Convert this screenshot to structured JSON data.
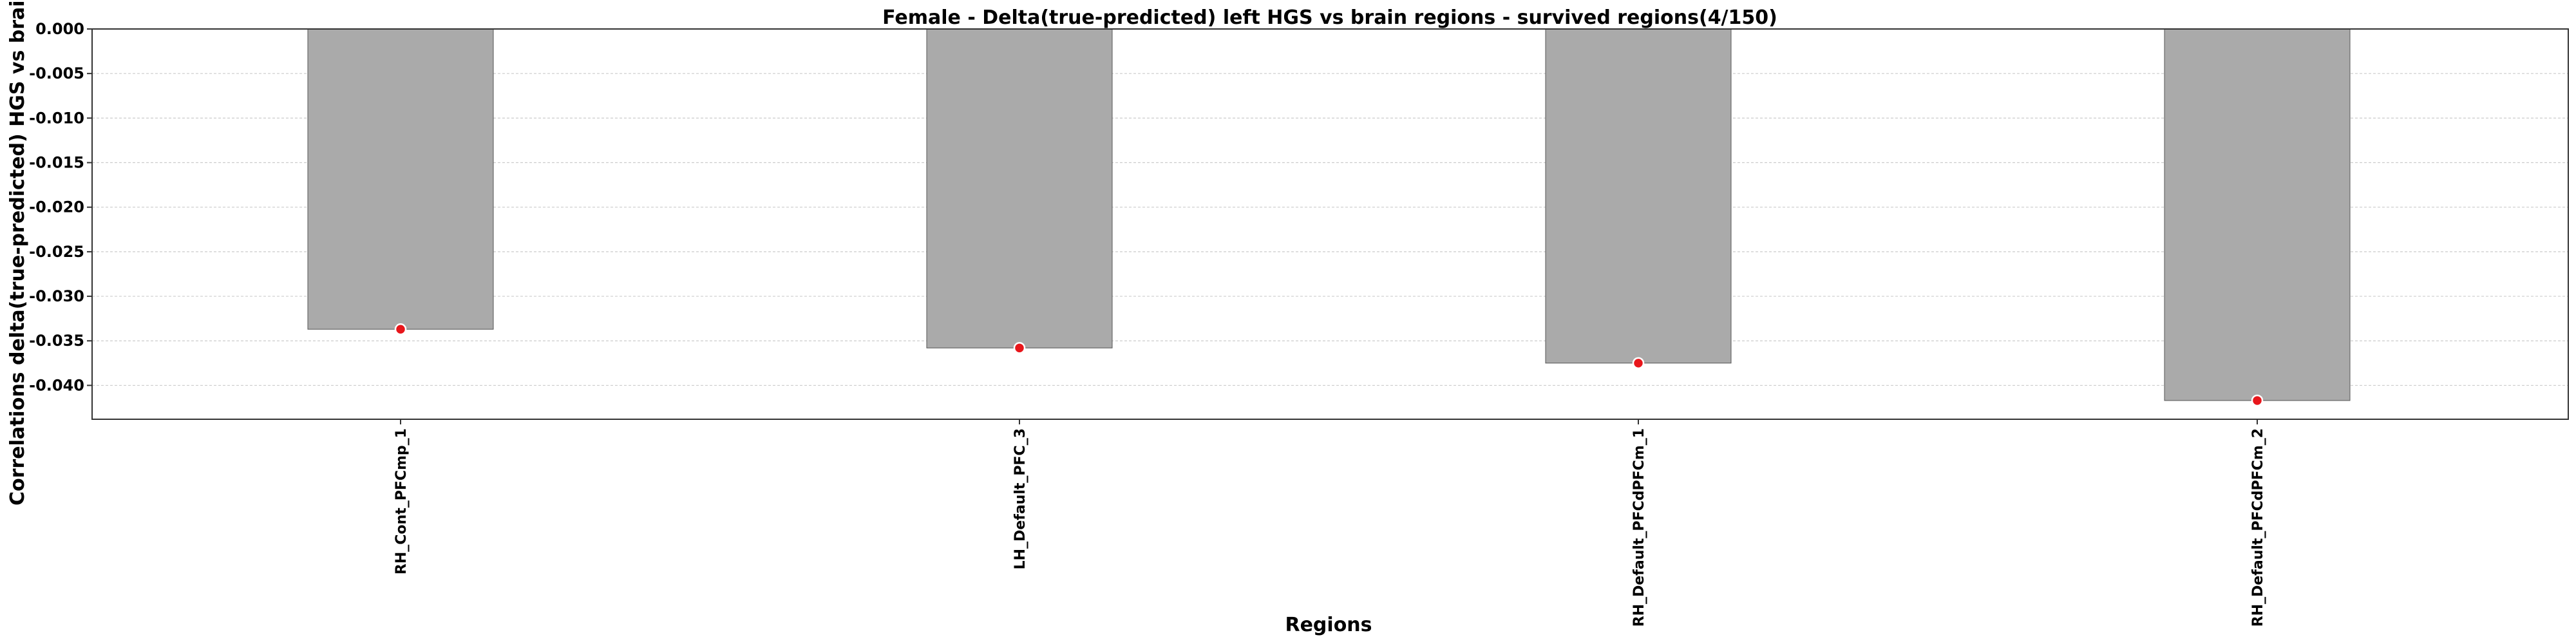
{
  "chart_data": {
    "type": "bar",
    "title": "Female - Delta(true-predicted) left HGS vs brain regions - survived regions(4/150)",
    "xlabel": "Regions",
    "ylabel": "Correlations delta(true-predicted) HGS vs brain re",
    "categories": [
      "RH_Cont_PFCmp_1",
      "LH_Default_PFC_3",
      "RH_Default_PFCdPFCm_1",
      "RH_Default_PFCdPFCm_2"
    ],
    "values": [
      -0.0337,
      -0.0358,
      -0.0375,
      -0.0417
    ],
    "ylim": [
      -0.0438,
      0.0
    ],
    "yticks": [
      0.0,
      -0.005,
      -0.01,
      -0.015,
      -0.02,
      -0.025,
      -0.03,
      -0.035,
      -0.04
    ],
    "ytick_labels": [
      "0.000",
      "-0.005",
      "-0.010",
      "-0.015",
      "-0.020",
      "-0.025",
      "-0.030",
      "-0.035",
      "-0.040"
    ],
    "grid": true,
    "bar_color": "#aaaaaa",
    "marker_color": "#e8161b"
  }
}
